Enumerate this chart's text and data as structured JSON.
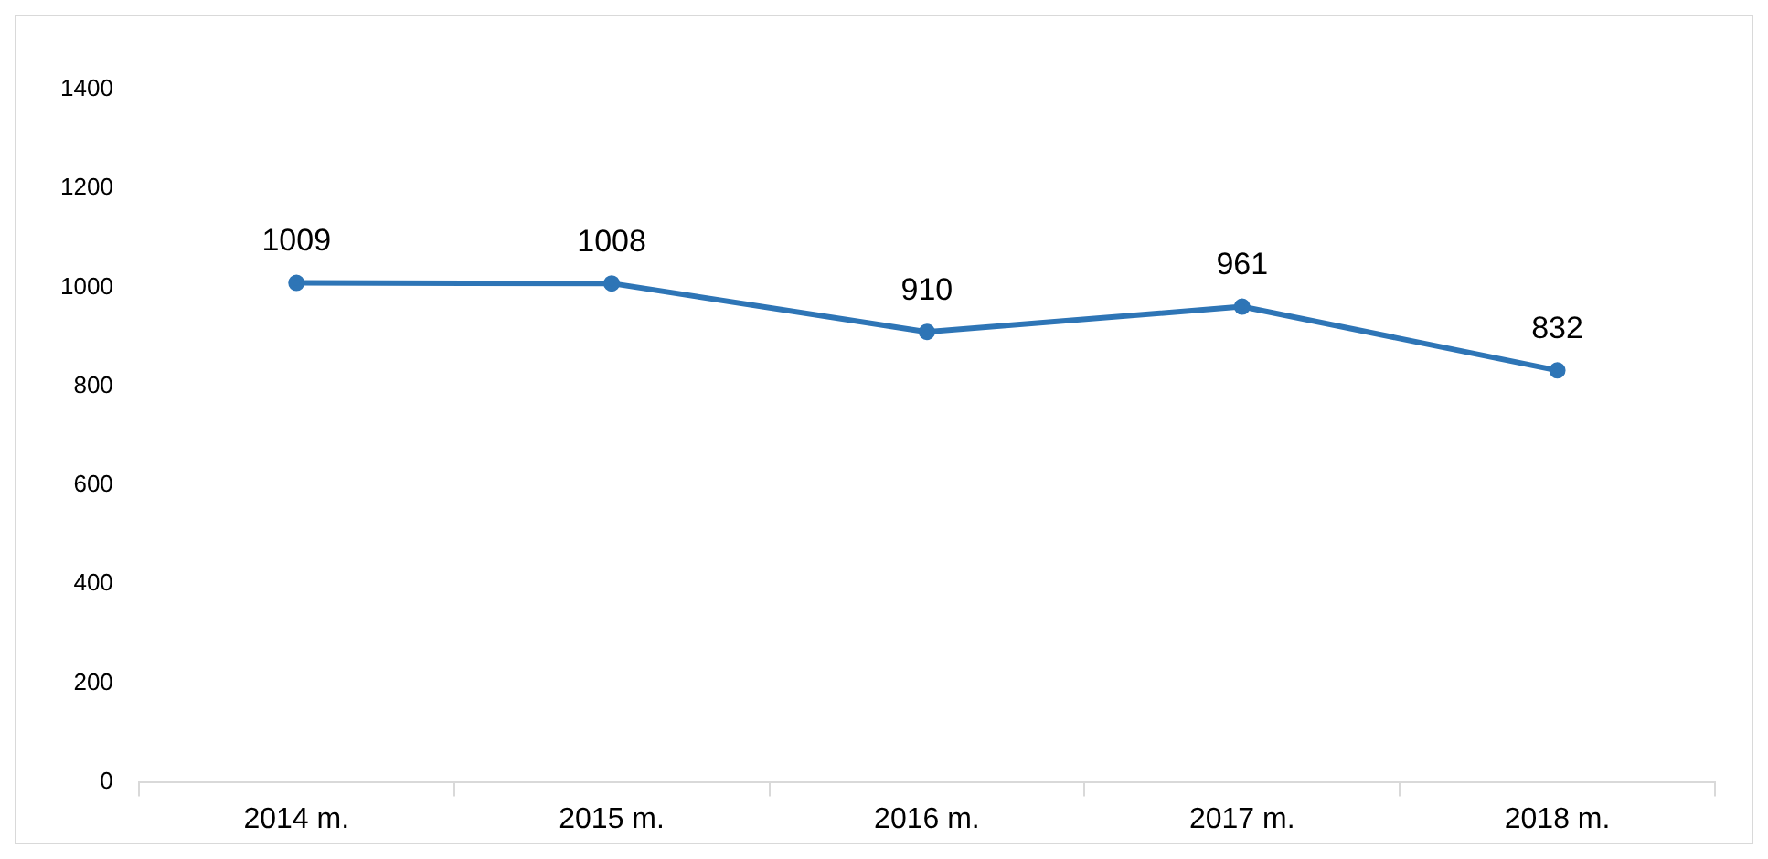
{
  "chart_data": {
    "type": "line",
    "categories": [
      "2014 m.",
      "2015 m.",
      "2016 m.",
      "2017 m.",
      "2018 m."
    ],
    "series": [
      {
        "color": "#2e75b6",
        "values": [
          1009,
          1008,
          910,
          961,
          832
        ]
      }
    ],
    "ylim": [
      0,
      1400
    ],
    "yticks": [
      0,
      200,
      400,
      600,
      800,
      1000,
      1200,
      1400
    ],
    "marker": "circle",
    "data_labels": true
  }
}
